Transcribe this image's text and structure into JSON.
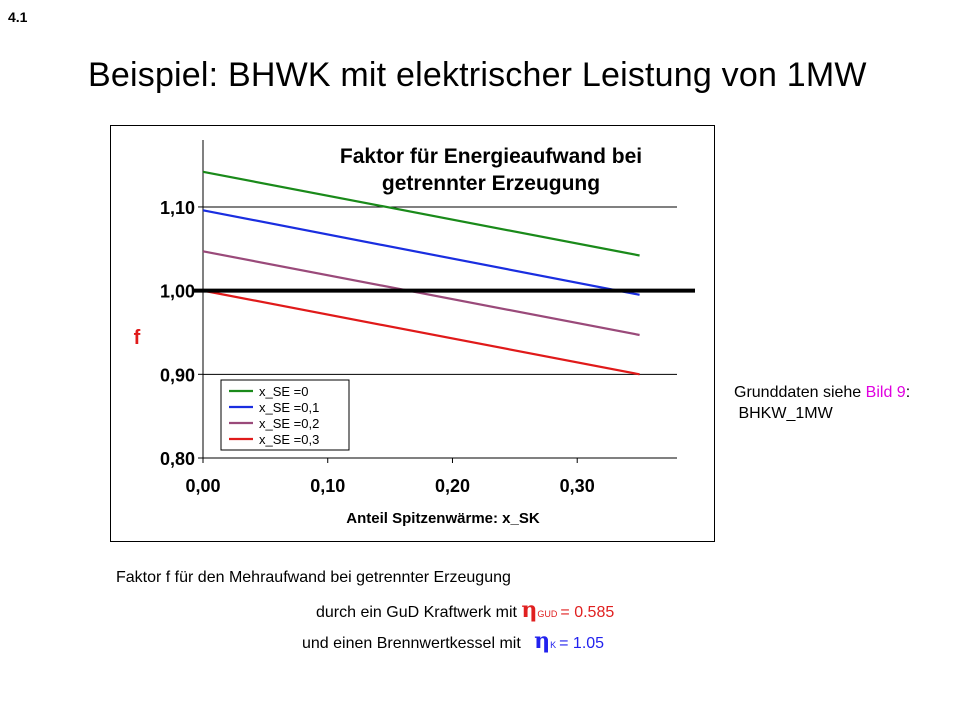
{
  "slide": {
    "number": "4.1",
    "title": "Beispiel: BHWK mit elektrischer Leistung von 1MW"
  },
  "side_note": {
    "line1_prefix": "Grunddaten siehe ",
    "line1_link": "Bild 9",
    "line1_suffix": ":",
    "line2": "BHKW_1MW"
  },
  "caption": {
    "line1": "Faktor f für den Mehraufwand bei getrennter Erzeugung",
    "line2_prefix": "durch ein GuD Kraftwerk mit ",
    "line2_eta": "η",
    "line2_sub": "GUD",
    "line2_value": "= 0.585",
    "line3_prefix": "und einen Brennwertkessel mit ",
    "line3_eta": "η",
    "line3_sub": "K",
    "line3_value": "= 1.05"
  },
  "colors": {
    "eta_gud": "#e02020",
    "eta_k": "#2222ee",
    "link": "#e000e0"
  },
  "chart_data": {
    "type": "line",
    "title_lines": [
      "Faktor für Energieaufwand bei",
      "getrennter Erzeugung"
    ],
    "xlabel": "Anteil Spitzenwärme: x_SK",
    "ylabel": "f",
    "xlim": [
      0.0,
      0.38
    ],
    "ylim": [
      0.8,
      1.18
    ],
    "xticks": [
      0.0,
      0.1,
      0.2,
      0.3
    ],
    "xtick_labels": [
      "0,00",
      "0,10",
      "0,20",
      "0,30"
    ],
    "yticks": [
      0.8,
      0.9,
      1.0,
      1.1
    ],
    "ytick_labels": [
      "0,80",
      "0,90",
      "1,00",
      "1,10"
    ],
    "grid": "horizontal",
    "legend_position": "lower-left",
    "reference_line": {
      "y": 1.0,
      "color": "#000000"
    },
    "series": [
      {
        "name": "x_SE =0",
        "color": "#1a8a1a",
        "x": [
          0.0,
          0.35
        ],
        "y": [
          1.142,
          1.042
        ]
      },
      {
        "name": "x_SE =0,1",
        "color": "#1a2ee0",
        "x": [
          0.0,
          0.35
        ],
        "y": [
          1.096,
          0.995
        ]
      },
      {
        "name": "x_SE =0,2",
        "color": "#9a4a7a",
        "x": [
          0.0,
          0.35
        ],
        "y": [
          1.047,
          0.947
        ]
      },
      {
        "name": "x_SE =0,3",
        "color": "#e01a1a",
        "x": [
          0.0,
          0.35
        ],
        "y": [
          1.0,
          0.9
        ]
      }
    ]
  }
}
